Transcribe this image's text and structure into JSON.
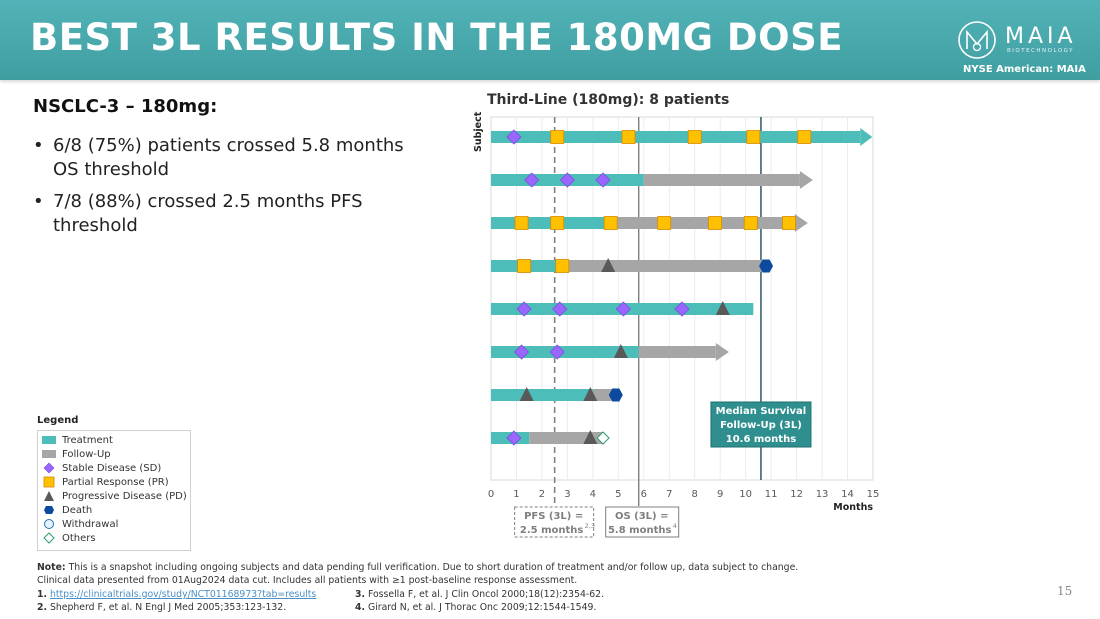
{
  "header": {
    "title": "BEST 3L RESULTS IN THE 180MG DOSE",
    "logo_name": "MAIA",
    "logo_sub": "BIOTECHNOLOGY",
    "ticker": "NYSE American: MAIA"
  },
  "summary": {
    "heading": "NSCLC-3 – 180mg:",
    "bullets": [
      "6/8 (75%) patients crossed 5.8 months OS threshold",
      "7/8 (88%) crossed 2.5 months PFS threshold"
    ]
  },
  "legend": {
    "title": "Legend",
    "items": [
      {
        "label": "Treatment",
        "icon": "teal-bar"
      },
      {
        "label": "Follow-Up",
        "icon": "gray-bar"
      },
      {
        "label": "Stable Disease (SD)",
        "icon": "purple-diamond"
      },
      {
        "label": "Partial Response (PR)",
        "icon": "orange-square"
      },
      {
        "label": "Progressive Disease (PD)",
        "icon": "dark-triangle"
      },
      {
        "label": "Death",
        "icon": "blue-hexagon"
      },
      {
        "label": "Withdrawal",
        "icon": "blue-circle"
      },
      {
        "label": "Others",
        "icon": "green-diamond"
      }
    ]
  },
  "colors": {
    "treatment": "#4dbdba",
    "followup": "#a6a6a6",
    "sd": "#9966ff",
    "pr": "#ffc000",
    "pd": "#595959",
    "death": "#0b4a9e",
    "others": "#2e9e6a",
    "median_box": "#2f8f8f"
  },
  "chart_data": {
    "type": "swimmer",
    "title": "Third-Line (180mg): 8 patients",
    "xlabel": "Months",
    "ylabel": "Subject",
    "xlim": [
      0,
      15
    ],
    "xticks": [
      0,
      1,
      2,
      3,
      4,
      5,
      6,
      7,
      8,
      9,
      10,
      11,
      12,
      13,
      14,
      15
    ],
    "grid": true,
    "subjects": [
      {
        "treatment_end": 14.5,
        "followup_end": null,
        "ongoing": true,
        "sd": [
          0.9
        ],
        "pr": [
          2.6,
          5.4,
          8.0,
          10.3,
          12.3
        ],
        "pd": [],
        "death": null,
        "others": null
      },
      {
        "treatment_end": 6.0,
        "followup_end": 12.6,
        "ongoing": true,
        "sd": [
          1.6,
          3.0,
          4.4
        ],
        "pr": [],
        "pd": [],
        "death": null,
        "others": null
      },
      {
        "treatment_end": 4.6,
        "followup_end": 12.4,
        "ongoing": true,
        "sd": [],
        "pr": [
          1.2,
          2.6,
          4.7,
          6.8,
          8.8,
          10.2,
          11.7
        ],
        "pd": [],
        "death": null,
        "others": null
      },
      {
        "treatment_end": 2.8,
        "followup_end": 10.8,
        "ongoing": false,
        "sd": [],
        "pr": [
          1.3,
          2.8
        ],
        "pd": [
          4.6
        ],
        "death": 10.8,
        "others": null
      },
      {
        "treatment_end": 10.3,
        "followup_end": null,
        "ongoing": false,
        "sd": [
          1.3,
          2.7,
          5.2,
          7.5
        ],
        "pr": [],
        "pd": [
          9.1
        ],
        "death": null,
        "others": null
      },
      {
        "treatment_end": 5.8,
        "followup_end": 9.3,
        "ongoing": true,
        "sd": [
          1.2,
          2.6
        ],
        "pr": [],
        "pd": [
          5.1
        ],
        "death": null,
        "others": null
      },
      {
        "treatment_end": 4.0,
        "followup_end": 4.9,
        "ongoing": false,
        "sd": [],
        "pr": [],
        "pd": [
          1.4,
          3.9
        ],
        "death": 4.9,
        "others": null
      },
      {
        "treatment_end": 1.5,
        "followup_end": 4.4,
        "ongoing": false,
        "sd": [
          0.9
        ],
        "pr": [],
        "pd": [
          3.9
        ],
        "death": null,
        "others": 4.4
      }
    ],
    "reference_lines": [
      {
        "name": "pfs",
        "x": 2.5,
        "style": "dashed",
        "label_line1": "PFS (3L) =",
        "label_line2": "2.5 months",
        "sup": "2,3"
      },
      {
        "name": "os",
        "x": 5.8,
        "style": "solid",
        "label_line1": "OS (3L) =",
        "label_line2": "5.8 months",
        "sup": "4"
      },
      {
        "name": "median-followup",
        "x": 10.6,
        "style": "solid",
        "label_line1": "Median Survival",
        "label_line2": "Follow-Up (3L)",
        "label_line3": "10.6 months"
      }
    ]
  },
  "footnotes": {
    "note_label": "Note:",
    "note_text": " This is a snapshot including ongoing subjects and data pending full verification. Due to short duration of treatment and/or follow up, data subject to change.",
    "note_line2": "Clinical data presented from 01Aug2024 data cut. Includes all patients with ≥1 post-baseline response assessment.",
    "refs": [
      {
        "num": "1.",
        "text": "https://clinicaltrials.gov/study/NCT01168973?tab=results",
        "link": true
      },
      {
        "num": "2.",
        "text": " Shepherd F, et al. N Engl J Med 2005;353:123-132.",
        "link": false
      },
      {
        "num": "3.",
        "text": " Fossella F, et al. J Clin Oncol 2000;18(12):2354-62.",
        "link": false
      },
      {
        "num": "4.",
        "text": " Girard N, et al. J Thorac Onc 2009;12:1544-1549.",
        "link": false
      }
    ]
  },
  "page_number": "15"
}
